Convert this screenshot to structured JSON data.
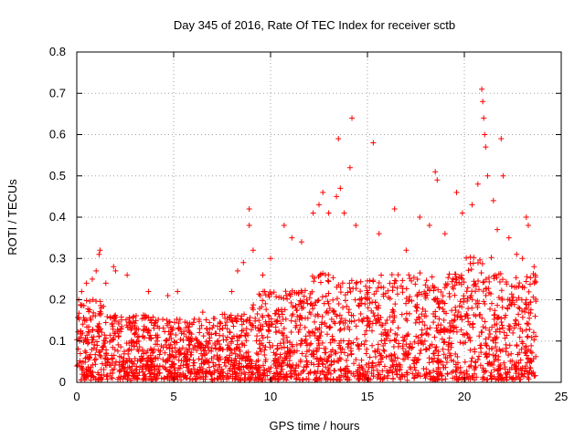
{
  "chart_data": {
    "type": "scatter",
    "title": "Day 345 of 2016, Rate Of TEC Index for receiver sctb",
    "xlabel": "GPS time / hours",
    "ylabel": "ROTI / TECUs",
    "xlim": [
      0,
      25
    ],
    "ylim": [
      0,
      0.8
    ],
    "xticks": [
      0,
      5,
      10,
      15,
      20,
      25
    ],
    "xtick_labels": [
      "0",
      "5",
      "10",
      "15",
      "20",
      "25"
    ],
    "yticks": [
      0,
      0.1,
      0.2,
      0.3,
      0.4,
      0.5,
      0.6,
      0.7,
      0.8
    ],
    "ytick_labels": [
      "0",
      "0.1",
      "0.2",
      "0.3",
      "0.4",
      "0.5",
      "0.6",
      "0.7",
      "0.8"
    ],
    "grid": true,
    "marker": "+",
    "colors": {
      "points": "#ff0000",
      "axes": "#000000",
      "grid": "#a0a0a0"
    },
    "series": [
      {
        "name": "ROTI sctb",
        "x_range": [
          0,
          23.7
        ],
        "envelope_note": "Dense cloud of ROTI samples between ~0 and ~0.3 TECU/min across the day; sparse outliers listed in points",
        "points": [
          [
            0.1,
            0.2
          ],
          [
            0.25,
            0.22
          ],
          [
            0.5,
            0.24
          ],
          [
            0.8,
            0.25
          ],
          [
            1.0,
            0.27
          ],
          [
            1.15,
            0.31
          ],
          [
            1.2,
            0.32
          ],
          [
            1.5,
            0.24
          ],
          [
            1.9,
            0.28
          ],
          [
            2.0,
            0.27
          ],
          [
            2.6,
            0.26
          ],
          [
            3.7,
            0.22
          ],
          [
            4.7,
            0.21
          ],
          [
            5.2,
            0.22
          ],
          [
            6.5,
            0.17
          ],
          [
            8.0,
            0.22
          ],
          [
            8.3,
            0.27
          ],
          [
            8.6,
            0.29
          ],
          [
            8.9,
            0.42
          ],
          [
            8.9,
            0.38
          ],
          [
            9.1,
            0.32
          ],
          [
            9.6,
            0.26
          ],
          [
            10.0,
            0.3
          ],
          [
            10.7,
            0.38
          ],
          [
            11.1,
            0.35
          ],
          [
            11.6,
            0.34
          ],
          [
            12.2,
            0.41
          ],
          [
            12.5,
            0.43
          ],
          [
            12.7,
            0.46
          ],
          [
            13.0,
            0.41
          ],
          [
            13.4,
            0.45
          ],
          [
            13.5,
            0.59
          ],
          [
            13.6,
            0.47
          ],
          [
            13.8,
            0.41
          ],
          [
            14.1,
            0.52
          ],
          [
            14.2,
            0.64
          ],
          [
            14.4,
            0.38
          ],
          [
            15.3,
            0.58
          ],
          [
            15.6,
            0.36
          ],
          [
            16.4,
            0.42
          ],
          [
            17.0,
            0.32
          ],
          [
            17.7,
            0.4
          ],
          [
            18.2,
            0.38
          ],
          [
            18.5,
            0.51
          ],
          [
            18.6,
            0.49
          ],
          [
            19.0,
            0.36
          ],
          [
            19.6,
            0.46
          ],
          [
            19.9,
            0.41
          ],
          [
            20.4,
            0.43
          ],
          [
            20.7,
            0.48
          ],
          [
            20.9,
            0.71
          ],
          [
            20.95,
            0.68
          ],
          [
            21.0,
            0.64
          ],
          [
            21.05,
            0.6
          ],
          [
            21.1,
            0.57
          ],
          [
            21.2,
            0.5
          ],
          [
            21.5,
            0.44
          ],
          [
            21.7,
            0.37
          ],
          [
            21.9,
            0.59
          ],
          [
            22.0,
            0.5
          ],
          [
            22.3,
            0.35
          ],
          [
            22.7,
            0.31
          ],
          [
            23.0,
            0.3
          ],
          [
            23.2,
            0.4
          ],
          [
            23.3,
            0.38
          ],
          [
            23.6,
            0.28
          ]
        ]
      }
    ]
  }
}
